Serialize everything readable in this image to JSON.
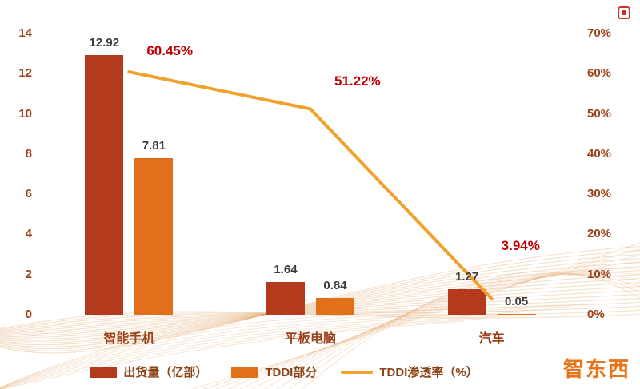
{
  "chart_data": {
    "type": "combo",
    "categories": [
      "智能手机",
      "平板电脑",
      "汽车"
    ],
    "series": [
      {
        "name": "出货量（亿部）",
        "type": "bar",
        "axis": "left",
        "color": "#B43A1E",
        "values": [
          12.92,
          1.64,
          1.27
        ],
        "labels": [
          "12.92",
          "1.64",
          "1.27"
        ]
      },
      {
        "name": "TDDI部分",
        "type": "bar",
        "axis": "left",
        "color": "#E2701A",
        "values": [
          7.81,
          0.84,
          0.05
        ],
        "labels": [
          "7.81",
          "0.84",
          "0.05"
        ]
      },
      {
        "name": "TDDI渗透率（%）",
        "type": "line",
        "axis": "right",
        "color": "#F0A22E",
        "values": [
          60.45,
          51.22,
          3.94
        ],
        "labels": [
          "60.45%",
          "51.22%",
          "3.94%"
        ]
      }
    ],
    "left_axis": {
      "min": 0,
      "max": 14,
      "ticks": [
        0,
        2,
        4,
        6,
        8,
        10,
        12,
        14
      ]
    },
    "right_axis": {
      "min": 0,
      "max": 70,
      "ticks": [
        "0%",
        "10%",
        "20%",
        "30%",
        "40%",
        "50%",
        "60%",
        "70%"
      ]
    },
    "legend_position": "bottom",
    "grid": false,
    "colors": {
      "axis_label": "#9C4018",
      "value_label": "#3C3C3C",
      "pct_label": "#C00000",
      "legend_label": "#8A4316"
    }
  },
  "watermark": {
    "text": "智东西"
  }
}
